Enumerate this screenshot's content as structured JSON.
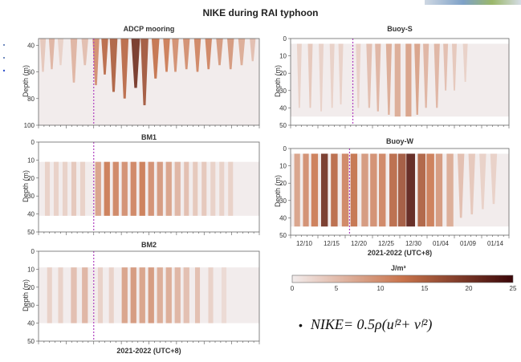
{
  "title": "NIKE during RAI typhoon",
  "colors": {
    "low": "#f2ecec",
    "mid": "#c9744c",
    "high": "#3a0608",
    "dashed": "#b040c0"
  },
  "colorbar": {
    "label": "J/m³",
    "ticks": [
      "0",
      "5",
      "10",
      "15",
      "20",
      "25"
    ],
    "min": 0,
    "max": 25
  },
  "formula": {
    "bullet": "•",
    "text": "NIKE= 0.5ρ(uᶠ²+ vᶠ²)"
  },
  "chart_data": [
    {
      "type": "heatmap",
      "name": "ADCP mooring",
      "title": "ADCP mooring",
      "ylabel": "Depth (m)",
      "ylim": [
        100,
        35
      ],
      "yticks": [
        "40",
        "60",
        "80",
        "100"
      ],
      "data_range": [
        35,
        100
      ],
      "x_range": [
        "12/07",
        "01/18"
      ],
      "xlabel": "",
      "bands": [
        {
          "x": 0.02,
          "w": 0.012,
          "v": 4,
          "b": 60
        },
        {
          "x": 0.06,
          "w": 0.012,
          "v": 6,
          "b": 58
        },
        {
          "x": 0.1,
          "w": 0.012,
          "v": 3,
          "b": 55
        },
        {
          "x": 0.16,
          "w": 0.014,
          "v": 6,
          "b": 68
        },
        {
          "x": 0.21,
          "w": 0.014,
          "v": 5,
          "b": 55
        },
        {
          "x": 0.26,
          "w": 0.014,
          "v": 10,
          "b": 70
        },
        {
          "x": 0.3,
          "w": 0.014,
          "v": 14,
          "b": 62
        },
        {
          "x": 0.34,
          "w": 0.016,
          "v": 15,
          "b": 75
        },
        {
          "x": 0.39,
          "w": 0.016,
          "v": 14,
          "b": 80
        },
        {
          "x": 0.44,
          "w": 0.018,
          "v": 20,
          "b": 72
        },
        {
          "x": 0.48,
          "w": 0.016,
          "v": 16,
          "b": 85
        },
        {
          "x": 0.53,
          "w": 0.016,
          "v": 13,
          "b": 65
        },
        {
          "x": 0.58,
          "w": 0.014,
          "v": 12,
          "b": 60
        },
        {
          "x": 0.62,
          "w": 0.014,
          "v": 10,
          "b": 60
        },
        {
          "x": 0.67,
          "w": 0.014,
          "v": 10,
          "b": 58
        },
        {
          "x": 0.72,
          "w": 0.014,
          "v": 11,
          "b": 60
        },
        {
          "x": 0.77,
          "w": 0.014,
          "v": 11,
          "b": 58
        },
        {
          "x": 0.82,
          "w": 0.014,
          "v": 9,
          "b": 55
        },
        {
          "x": 0.87,
          "w": 0.014,
          "v": 9,
          "b": 58
        },
        {
          "x": 0.92,
          "w": 0.014,
          "v": 7,
          "b": 55
        },
        {
          "x": 0.97,
          "w": 0.012,
          "v": 5,
          "b": 52
        }
      ],
      "typhoon_line_frac": 0.25
    },
    {
      "type": "heatmap",
      "name": "Buoy-S",
      "title": "Buoy-S",
      "ylabel": "Depth (m)",
      "ylim": [
        50,
        0
      ],
      "yticks": [
        "0",
        "10",
        "20",
        "30",
        "40",
        "50"
      ],
      "data_range": [
        3,
        45
      ],
      "xlabel": "",
      "bands": [
        {
          "x": 0.04,
          "w": 0.01,
          "v": 3,
          "b": 40
        },
        {
          "x": 0.09,
          "w": 0.01,
          "v": 4,
          "b": 40
        },
        {
          "x": 0.14,
          "w": 0.01,
          "v": 3,
          "b": 42
        },
        {
          "x": 0.19,
          "w": 0.01,
          "v": 3,
          "b": 40
        },
        {
          "x": 0.23,
          "w": 0.01,
          "v": 3,
          "b": 38
        },
        {
          "x": 0.31,
          "w": 0.01,
          "v": 3,
          "b": 40
        },
        {
          "x": 0.36,
          "w": 0.012,
          "v": 5,
          "b": 40
        },
        {
          "x": 0.4,
          "w": 0.012,
          "v": 6,
          "b": 42
        },
        {
          "x": 0.45,
          "w": 0.012,
          "v": 7,
          "b": 44
        },
        {
          "x": 0.49,
          "w": 0.012,
          "v": 7,
          "b": 45
        },
        {
          "x": 0.54,
          "w": 0.012,
          "v": 8,
          "b": 45
        },
        {
          "x": 0.58,
          "w": 0.012,
          "v": 8,
          "b": 44
        },
        {
          "x": 0.62,
          "w": 0.012,
          "v": 6,
          "b": 40
        },
        {
          "x": 0.67,
          "w": 0.012,
          "v": 6,
          "b": 40
        },
        {
          "x": 0.71,
          "w": 0.01,
          "v": 5,
          "b": 30
        },
        {
          "x": 0.75,
          "w": 0.01,
          "v": 4,
          "b": 30
        },
        {
          "x": 0.8,
          "w": 0.01,
          "v": 3,
          "b": 25
        }
      ],
      "typhoon_line_frac": 0.285
    },
    {
      "type": "heatmap",
      "name": "BM1",
      "title": "BM1",
      "ylabel": "Depth (m)",
      "ylim": [
        50,
        0
      ],
      "yticks": [
        "0",
        "10",
        "20",
        "30",
        "40",
        "50"
      ],
      "data_range": [
        11,
        41
      ],
      "xlabel": "",
      "bands": [
        {
          "x": 0.04,
          "w": 0.01,
          "v": 3,
          "b": 41
        },
        {
          "x": 0.08,
          "w": 0.01,
          "v": 3,
          "b": 41
        },
        {
          "x": 0.12,
          "w": 0.01,
          "v": 3,
          "b": 41
        },
        {
          "x": 0.16,
          "w": 0.01,
          "v": 4,
          "b": 41
        },
        {
          "x": 0.2,
          "w": 0.01,
          "v": 3,
          "b": 41
        },
        {
          "x": 0.27,
          "w": 0.012,
          "v": 8,
          "b": 41
        },
        {
          "x": 0.31,
          "w": 0.012,
          "v": 12,
          "b": 41
        },
        {
          "x": 0.35,
          "w": 0.012,
          "v": 11,
          "b": 41
        },
        {
          "x": 0.39,
          "w": 0.012,
          "v": 10,
          "b": 41
        },
        {
          "x": 0.43,
          "w": 0.012,
          "v": 11,
          "b": 41
        },
        {
          "x": 0.47,
          "w": 0.012,
          "v": 12,
          "b": 41
        },
        {
          "x": 0.51,
          "w": 0.012,
          "v": 10,
          "b": 41
        },
        {
          "x": 0.55,
          "w": 0.012,
          "v": 9,
          "b": 41
        },
        {
          "x": 0.59,
          "w": 0.012,
          "v": 8,
          "b": 41
        },
        {
          "x": 0.63,
          "w": 0.012,
          "v": 6,
          "b": 41
        },
        {
          "x": 0.67,
          "w": 0.01,
          "v": 5,
          "b": 41
        },
        {
          "x": 0.71,
          "w": 0.01,
          "v": 4,
          "b": 41
        },
        {
          "x": 0.75,
          "w": 0.01,
          "v": 4,
          "b": 41
        },
        {
          "x": 0.79,
          "w": 0.01,
          "v": 3,
          "b": 41
        },
        {
          "x": 0.83,
          "w": 0.01,
          "v": 3,
          "b": 41
        },
        {
          "x": 0.87,
          "w": 0.01,
          "v": 3,
          "b": 41
        }
      ],
      "typhoon_line_frac": 0.25
    },
    {
      "type": "heatmap",
      "name": "Buoy-W",
      "title": "Buoy-W",
      "ylabel": "Depth (m)",
      "ylim": [
        50,
        0
      ],
      "yticks": [
        "0",
        "10",
        "20",
        "30",
        "40",
        "50"
      ],
      "data_range": [
        3,
        45
      ],
      "xlabel": "2021-2022 (UTC+8)",
      "xticks": [
        "12/10",
        "12/15",
        "12/20",
        "12/25",
        "12/30",
        "01/04",
        "01/09",
        "01/14"
      ],
      "bands": [
        {
          "x": 0.03,
          "w": 0.012,
          "v": 8,
          "b": 45
        },
        {
          "x": 0.07,
          "w": 0.012,
          "v": 10,
          "b": 45
        },
        {
          "x": 0.11,
          "w": 0.014,
          "v": 12,
          "b": 45
        },
        {
          "x": 0.155,
          "w": 0.014,
          "v": 20,
          "b": 45
        },
        {
          "x": 0.2,
          "w": 0.014,
          "v": 14,
          "b": 45
        },
        {
          "x": 0.25,
          "w": 0.014,
          "v": 11,
          "b": 45
        },
        {
          "x": 0.29,
          "w": 0.014,
          "v": 13,
          "b": 45
        },
        {
          "x": 0.34,
          "w": 0.014,
          "v": 9,
          "b": 45
        },
        {
          "x": 0.38,
          "w": 0.014,
          "v": 10,
          "b": 45
        },
        {
          "x": 0.42,
          "w": 0.014,
          "v": 11,
          "b": 45
        },
        {
          "x": 0.47,
          "w": 0.016,
          "v": 14,
          "b": 45
        },
        {
          "x": 0.51,
          "w": 0.016,
          "v": 16,
          "b": 45
        },
        {
          "x": 0.55,
          "w": 0.018,
          "v": 22,
          "b": 45
        },
        {
          "x": 0.6,
          "w": 0.016,
          "v": 15,
          "b": 45
        },
        {
          "x": 0.64,
          "w": 0.016,
          "v": 12,
          "b": 45
        },
        {
          "x": 0.68,
          "w": 0.014,
          "v": 9,
          "b": 45
        },
        {
          "x": 0.73,
          "w": 0.014,
          "v": 7,
          "b": 45
        },
        {
          "x": 0.78,
          "w": 0.014,
          "v": 5,
          "b": 40
        },
        {
          "x": 0.83,
          "w": 0.014,
          "v": 4,
          "b": 38
        },
        {
          "x": 0.88,
          "w": 0.014,
          "v": 3,
          "b": 35
        },
        {
          "x": 0.93,
          "w": 0.014,
          "v": 3,
          "b": 32
        }
      ],
      "typhoon_line_frac": 0.27
    },
    {
      "type": "heatmap",
      "name": "BM2",
      "title": "BM2",
      "ylabel": "Depth (m)",
      "ylim": [
        50,
        0
      ],
      "yticks": [
        "0",
        "10",
        "20",
        "30",
        "40",
        "50"
      ],
      "data_range": [
        9,
        40
      ],
      "xlabel": "2021-2022 (UTC+8)",
      "bands": [
        {
          "x": 0.05,
          "w": 0.01,
          "v": 3,
          "b": 40
        },
        {
          "x": 0.1,
          "w": 0.01,
          "v": 3,
          "b": 40
        },
        {
          "x": 0.16,
          "w": 0.012,
          "v": 5,
          "b": 40
        },
        {
          "x": 0.21,
          "w": 0.012,
          "v": 6,
          "b": 40
        },
        {
          "x": 0.28,
          "w": 0.01,
          "v": 3,
          "b": 40
        },
        {
          "x": 0.33,
          "w": 0.01,
          "v": 3,
          "b": 40
        },
        {
          "x": 0.39,
          "w": 0.012,
          "v": 8,
          "b": 40
        },
        {
          "x": 0.43,
          "w": 0.012,
          "v": 9,
          "b": 40
        },
        {
          "x": 0.47,
          "w": 0.012,
          "v": 8,
          "b": 40
        },
        {
          "x": 0.51,
          "w": 0.012,
          "v": 9,
          "b": 40
        },
        {
          "x": 0.55,
          "w": 0.012,
          "v": 7,
          "b": 40
        },
        {
          "x": 0.59,
          "w": 0.012,
          "v": 7,
          "b": 40
        },
        {
          "x": 0.63,
          "w": 0.012,
          "v": 6,
          "b": 40
        },
        {
          "x": 0.67,
          "w": 0.012,
          "v": 5,
          "b": 40
        },
        {
          "x": 0.72,
          "w": 0.01,
          "v": 5,
          "b": 40
        },
        {
          "x": 0.78,
          "w": 0.01,
          "v": 3,
          "b": 40
        },
        {
          "x": 0.84,
          "w": 0.01,
          "v": 2,
          "b": 40
        }
      ],
      "typhoon_line_frac": 0.25
    }
  ]
}
